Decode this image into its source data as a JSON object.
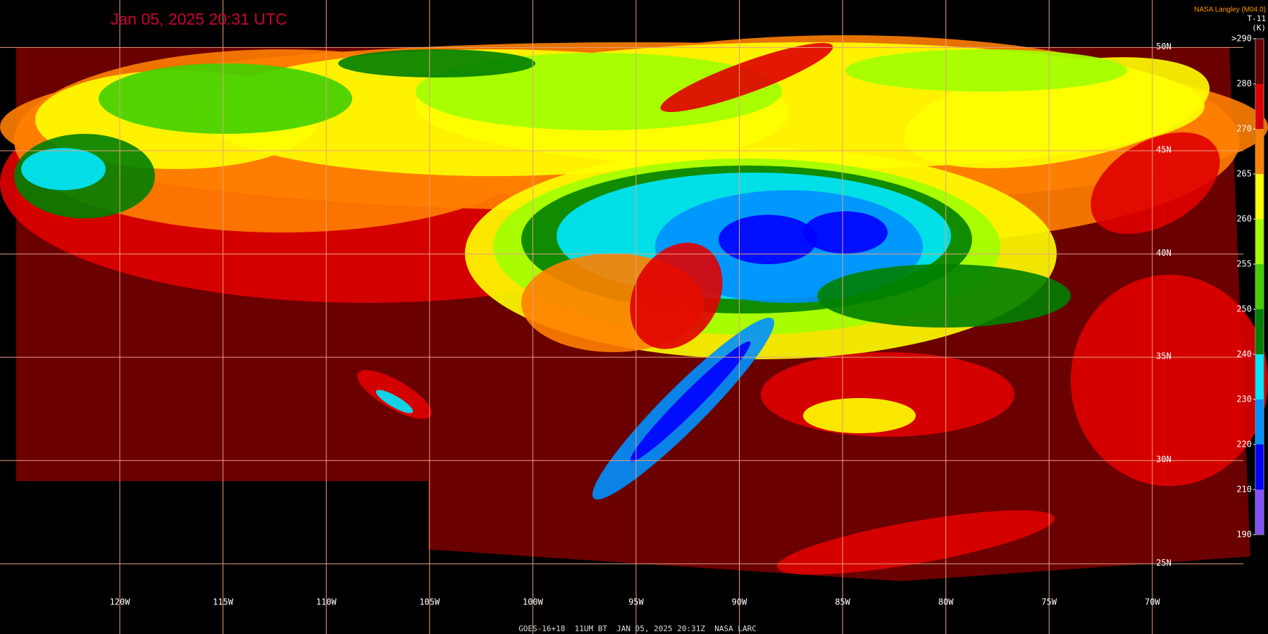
{
  "map": {
    "title": "Jan 05, 2025 20:31 UTC",
    "credit": "NASA Langley (M04.0)",
    "colorbar": {
      "title": "T-11",
      "unit": "(K)",
      "ticks": [
        {
          "value": 290,
          "label": ">290"
        },
        280,
        270,
        265,
        260,
        255,
        250,
        240,
        230,
        220,
        210,
        190
      ],
      "colors": [
        "#6a0000",
        "#e00000",
        "#ff8000",
        "#ffff00",
        "#a0ff00",
        "#40d000",
        "#008000",
        "#00e8ff",
        "#0090ff",
        "#0000ff",
        "#8050ff"
      ]
    },
    "lonlim": [
      -125.8,
      -64.4
    ],
    "latlim": [
      21.6,
      52.3
    ],
    "lon_ticks": [
      {
        "value": -120,
        "label": "120W"
      },
      {
        "value": -115,
        "label": "115W"
      },
      {
        "value": -110,
        "label": "110W"
      },
      {
        "value": -105,
        "label": "105W"
      },
      {
        "value": -100,
        "label": "100W"
      },
      {
        "value": -95,
        "label": "95W"
      },
      {
        "value": -90,
        "label": "90W"
      },
      {
        "value": -85,
        "label": "85W"
      },
      {
        "value": -80,
        "label": "80W"
      },
      {
        "value": -75,
        "label": "75W"
      },
      {
        "value": -70,
        "label": "70W"
      }
    ],
    "lat_ticks": [
      {
        "value": 50,
        "label": "50N"
      },
      {
        "value": 45,
        "label": "45N"
      },
      {
        "value": 40,
        "label": "40N"
      },
      {
        "value": 35,
        "label": "35N"
      },
      {
        "value": 30,
        "label": "30N"
      },
      {
        "value": 25,
        "label": "25N"
      }
    ],
    "footer": "GOES-16+18  11UM BT  JAN 05, 2025 20:31Z  NASA LARC"
  }
}
